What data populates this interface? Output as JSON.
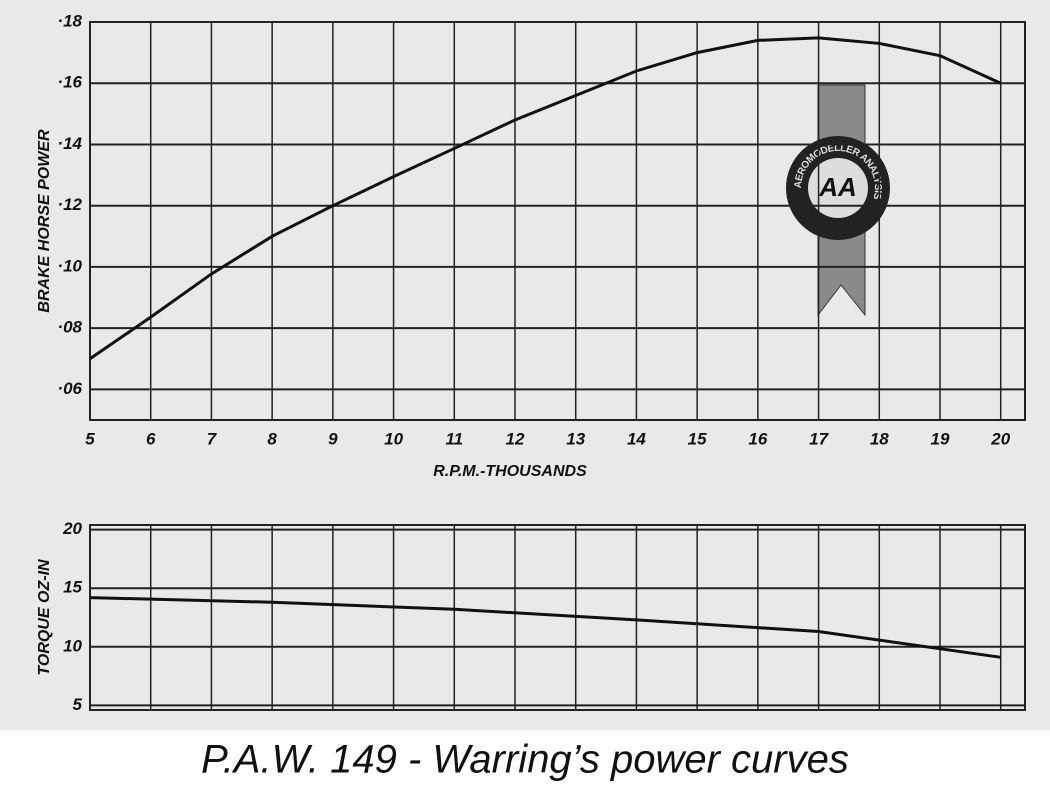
{
  "chart_data": [
    {
      "type": "line",
      "x_label": "R.P.M.-THOUSANDS",
      "y_label": "BRAKE HORSE POWER",
      "x": [
        5,
        6,
        7,
        8,
        9,
        10,
        11,
        12,
        13,
        14,
        15,
        16,
        17,
        18,
        19,
        20
      ],
      "series": [
        {
          "name": "Brake horse power",
          "color": "#111111",
          "values": [
            0.07,
            0.0836,
            0.0977,
            0.11,
            0.12,
            0.1295,
            0.1387,
            0.148,
            0.156,
            0.164,
            0.17,
            0.174,
            0.1748,
            0.173,
            0.169,
            0.16
          ]
        }
      ],
      "xlim": [
        5,
        20.4
      ],
      "ylim": [
        0.05,
        0.18
      ],
      "xticks": [
        5,
        6,
        7,
        8,
        9,
        10,
        11,
        12,
        13,
        14,
        15,
        16,
        17,
        18,
        19,
        20
      ],
      "yticks": [
        {
          "value": 0.06,
          "label": "·06"
        },
        {
          "value": 0.08,
          "label": "·08"
        },
        {
          "value": 0.1,
          "label": "·10"
        },
        {
          "value": 0.12,
          "label": "·12"
        },
        {
          "value": 0.14,
          "label": "·14"
        },
        {
          "value": 0.16,
          "label": "·16"
        },
        {
          "value": 0.18,
          "label": "·18"
        }
      ],
      "grid": true
    },
    {
      "type": "line",
      "y_label": "TORQUE OZ-IN",
      "x": [
        5,
        8,
        11,
        14,
        17,
        20
      ],
      "series": [
        {
          "name": "Torque",
          "color": "#111111",
          "values": [
            14.2,
            13.8,
            13.2,
            12.3,
            11.3,
            9.1
          ]
        }
      ],
      "xlim": [
        5,
        20.4
      ],
      "ylim": [
        4.6,
        20.4
      ],
      "xticks": [
        5,
        6,
        7,
        8,
        9,
        10,
        11,
        12,
        13,
        14,
        15,
        16,
        17,
        18,
        19,
        20
      ],
      "yticks": [
        5,
        10,
        15,
        20
      ],
      "grid": true
    }
  ],
  "badge": {
    "monogram": "AA",
    "ring": "AEROMODELLER ANALYSIS"
  },
  "caption": "P.A.W. 149 - Warring’s power curves"
}
